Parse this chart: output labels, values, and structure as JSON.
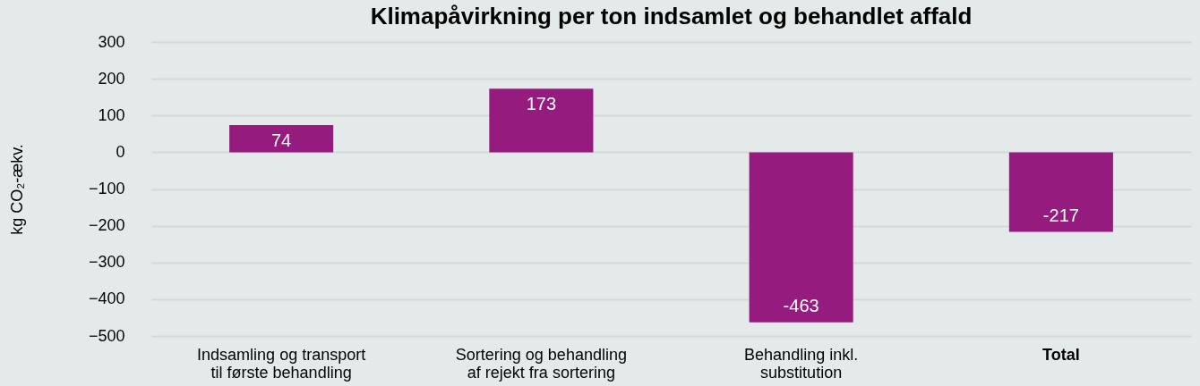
{
  "chart_data": {
    "type": "bar",
    "title": "Klimapåvirkning per ton indsamlet og behandlet affald",
    "ylabel": "kg CO₂-ækv.",
    "categories": [
      "Indsamling og transport til første behandling",
      "Sortering og behandling af rejekt fra sortering",
      "Behandling inkl. substitution",
      "Total"
    ],
    "values": [
      74,
      173,
      -463,
      -217
    ],
    "color": "#951c7e",
    "ylim": [
      -500,
      300
    ],
    "yticks": [
      -500,
      -400,
      -300,
      -200,
      -100,
      0,
      100,
      200,
      300
    ],
    "grid": "y",
    "data_labels": true
  }
}
